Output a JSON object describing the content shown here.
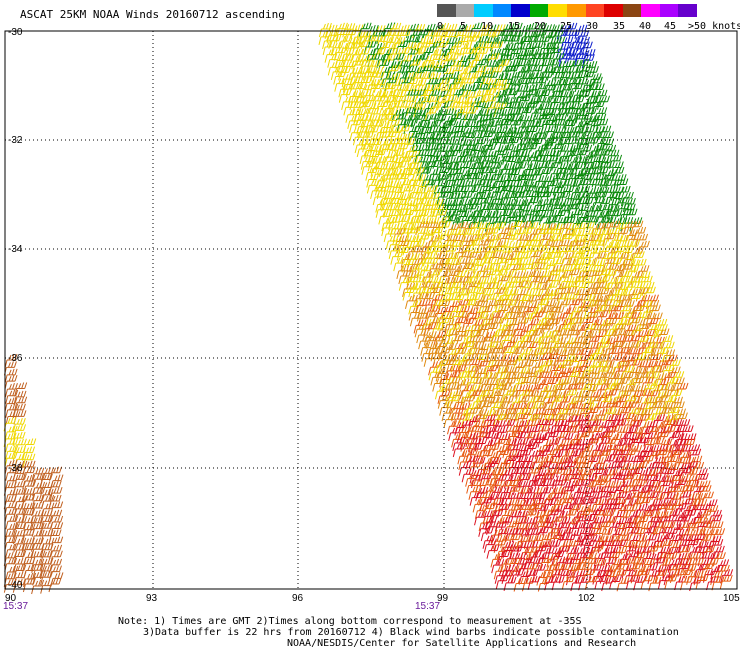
{
  "title": "ASCAT 25KM NOAA Winds 20160712 ascending",
  "legend": {
    "labels": [
      "0",
      "5",
      "10",
      "15",
      "20",
      "25",
      "30",
      "35",
      "40",
      "45",
      ">50 knots"
    ],
    "colors": [
      "#555555",
      "#aaaaaa",
      "#00ccff",
      "#0088ff",
      "#0000cc",
      "#00aa00",
      "#ffdd00",
      "#ff9900",
      "#ff4422",
      "#dd0000",
      "#8b4513",
      "#ff00ff",
      "#aa00ff",
      "#6600cc"
    ]
  },
  "map": {
    "lat_labels": [
      "-30",
      "-32",
      "-34",
      "-36",
      "-38",
      "-40"
    ],
    "lon_labels": [
      "90",
      "93",
      "96",
      "99",
      "102",
      "105"
    ],
    "time_labels": [
      "15:37",
      "15:37"
    ],
    "wind_barb_colors": {
      "green": "#0a8a0a",
      "yellow": "#f0d800",
      "orange": "#e08a10",
      "red_orange": "#e85a10",
      "red": "#dd1020",
      "blue": "#1020cc",
      "brown": "#c06020"
    }
  },
  "notes": {
    "line1": "Note: 1) Times are GMT 2)Times along bottom correspond to measurement at -35S",
    "line2": "3)Data buffer is 22 hrs from 20160712 4) Black wind barbs indicate possible contamination",
    "line3": "NOAA/NESDIS/Center for Satellite Applications and Research"
  }
}
